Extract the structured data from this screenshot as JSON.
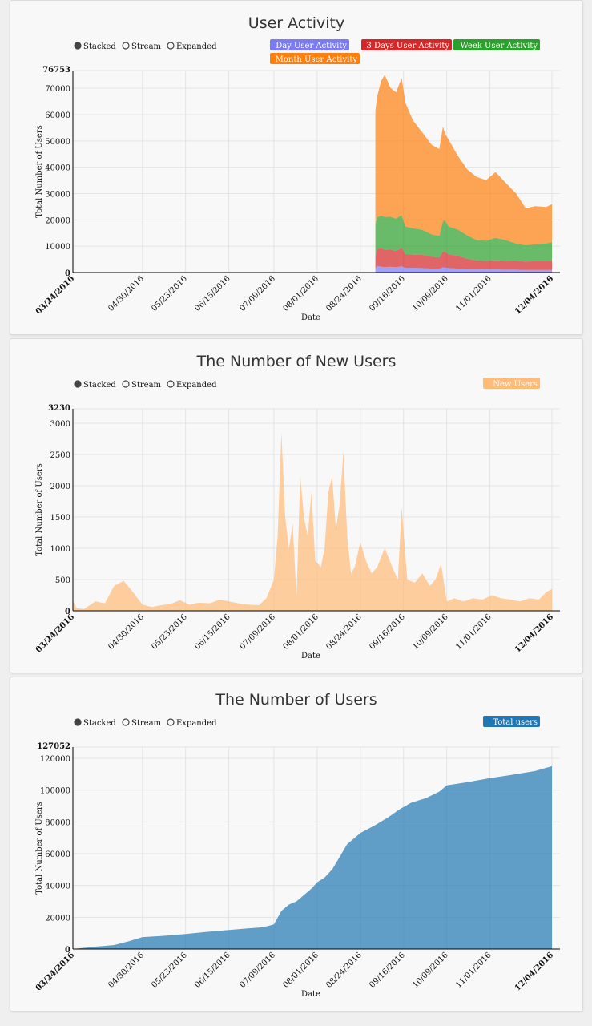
{
  "modes": [
    "Stacked",
    "Stream",
    "Expanded"
  ],
  "selected_mode": "Stacked",
  "x_ticks": [
    "03/24/2016",
    "04/30/2016",
    "05/23/2016",
    "06/15/2016",
    "07/09/2016",
    "08/01/2016",
    "08/24/2016",
    "09/16/2016",
    "10/09/2016",
    "11/01/2016",
    "12/04/2016"
  ],
  "chart_data": [
    {
      "type": "area",
      "title": "User Activity",
      "xlabel": "Date",
      "ylabel": "Total Number of Users",
      "ylim": [
        0,
        76753
      ],
      "y_max_label": "76753",
      "y_ticks": [
        "0",
        "10000",
        "20000",
        "30000",
        "40000",
        "50000",
        "60000",
        "70000"
      ],
      "y_tick_values": [
        0,
        10000,
        20000,
        30000,
        40000,
        50000,
        60000,
        70000
      ],
      "grid": true,
      "legend": "top-right",
      "stacked": true,
      "x": [
        "09/01/2016",
        "09/02/2016",
        "09/04/2016",
        "09/06/2016",
        "09/09/2016",
        "09/12/2016",
        "09/15/2016",
        "09/17/2016",
        "09/21/2016",
        "09/26/2016",
        "10/01/2016",
        "10/05/2016",
        "10/07/2016",
        "10/08/2016",
        "10/10/2016",
        "10/15/2016",
        "10/20/2016",
        "10/25/2016",
        "10/30/2016",
        "11/04/2016",
        "11/09/2016",
        "11/15/2016",
        "11/20/2016",
        "11/25/2016",
        "12/01/2016",
        "12/04/2016"
      ],
      "series": [
        {
          "name": "Day User Activity",
          "color": "#7b7bf5",
          "values": [
            1500,
            2500,
            2200,
            2100,
            2200,
            2000,
            2400,
            1800,
            1800,
            1700,
            1500,
            1400,
            2000,
            1900,
            1700,
            1500,
            1200,
            1200,
            1200,
            1200,
            1100,
            1100,
            1000,
            1000,
            1000,
            1000
          ]
        },
        {
          "name": "3 Days User Activity",
          "color": "#d62728",
          "values": [
            4500,
            6500,
            7000,
            6500,
            6500,
            6200,
            7000,
            5200,
            5000,
            5000,
            4500,
            4300,
            6000,
            6000,
            5200,
            4800,
            4000,
            3400,
            3300,
            3500,
            3400,
            3300,
            3200,
            3300,
            3400,
            3500
          ]
        },
        {
          "name": "Week User Activity",
          "color": "#2ca02c",
          "values": [
            12500,
            12000,
            12500,
            12500,
            12500,
            12300,
            12500,
            10500,
            10000,
            9500,
            8500,
            8200,
            11500,
            12000,
            10600,
            10000,
            8900,
            7700,
            7600,
            8500,
            7900,
            6600,
            6200,
            6400,
            6700,
            7000
          ]
        },
        {
          "name": "Month User Activity",
          "color": "#ff7f0e",
          "values": [
            43000,
            46000,
            51000,
            54000,
            49000,
            48000,
            52000,
            47000,
            41000,
            37000,
            34000,
            33000,
            36000,
            33000,
            33000,
            28000,
            25000,
            24000,
            23000,
            25000,
            22000,
            19000,
            14000,
            14500,
            13800,
            14500
          ]
        }
      ]
    },
    {
      "type": "area",
      "title": "The Number of New Users",
      "xlabel": "Date",
      "ylabel": "Total Number of Users",
      "ylim": [
        0,
        3230
      ],
      "y_max_label": "3230",
      "y_ticks": [
        "0",
        "500",
        "1000",
        "1500",
        "2000",
        "2500",
        "3000"
      ],
      "y_tick_values": [
        0,
        500,
        1000,
        1500,
        2000,
        2500,
        3000
      ],
      "grid": true,
      "legend": "top-right",
      "x": [
        "03/24/2016",
        "03/26/2016",
        "03/30/2016",
        "04/05/2016",
        "04/10/2016",
        "04/15/2016",
        "04/20/2016",
        "04/25/2016",
        "04/30/2016",
        "05/05/2016",
        "05/10/2016",
        "05/15/2016",
        "05/20/2016",
        "05/25/2016",
        "05/30/2016",
        "06/05/2016",
        "06/10/2016",
        "06/15/2016",
        "06/20/2016",
        "06/25/2016",
        "07/01/2016",
        "07/05/2016",
        "07/09/2016",
        "07/11/2016",
        "07/13/2016",
        "07/15/2016",
        "07/17/2016",
        "07/19/2016",
        "07/21/2016",
        "07/23/2016",
        "07/25/2016",
        "07/27/2016",
        "07/29/2016",
        "07/31/2016",
        "08/03/2016",
        "08/05/2016",
        "08/07/2016",
        "08/09/2016",
        "08/11/2016",
        "08/13/2016",
        "08/15/2016",
        "08/17/2016",
        "08/19/2016",
        "08/21/2016",
        "08/24/2016",
        "08/27/2016",
        "08/30/2016",
        "09/02/2016",
        "09/06/2016",
        "09/10/2016",
        "09/13/2016",
        "09/15/2016",
        "09/18/2016",
        "09/22/2016",
        "09/26/2016",
        "09/30/2016",
        "10/03/2016",
        "10/06/2016",
        "10/09/2016",
        "10/13/2016",
        "10/18/2016",
        "10/23/2016",
        "10/28/2016",
        "11/02/2016",
        "11/07/2016",
        "11/12/2016",
        "11/17/2016",
        "11/22/2016",
        "11/27/2016",
        "12/01/2016",
        "12/04/2016"
      ],
      "series": [
        {
          "name": "New Users",
          "color": "#ffbb78",
          "values": [
            160,
            40,
            30,
            150,
            120,
            400,
            480,
            300,
            100,
            60,
            90,
            110,
            170,
            100,
            130,
            120,
            180,
            150,
            120,
            100,
            90,
            200,
            500,
            1200,
            2850,
            1500,
            1000,
            1400,
            200,
            2150,
            1500,
            1200,
            1900,
            800,
            700,
            1000,
            1900,
            2150,
            1300,
            1700,
            2550,
            1200,
            600,
            700,
            1100,
            800,
            600,
            700,
            1000,
            700,
            500,
            1650,
            500,
            450,
            600,
            400,
            500,
            750,
            150,
            200,
            150,
            200,
            180,
            250,
            200,
            180,
            150,
            200,
            180,
            300,
            350
          ]
        }
      ]
    },
    {
      "type": "area",
      "title": "The Number of Users",
      "xlabel": "Date",
      "ylabel": "Total Number of Users",
      "ylim": [
        0,
        127052
      ],
      "y_max_label": "127052",
      "y_ticks": [
        "0",
        "20000",
        "40000",
        "60000",
        "80000",
        "100000",
        "120000"
      ],
      "y_tick_values": [
        0,
        20000,
        40000,
        60000,
        80000,
        100000,
        120000
      ],
      "grid": true,
      "legend": "top-right",
      "x": [
        "03/24/2016",
        "04/05/2016",
        "04/15/2016",
        "04/23/2016",
        "04/30/2016",
        "05/10/2016",
        "05/23/2016",
        "06/05/2016",
        "06/15/2016",
        "06/25/2016",
        "07/01/2016",
        "07/05/2016",
        "07/09/2016",
        "07/13/2016",
        "07/17/2016",
        "07/21/2016",
        "07/25/2016",
        "07/29/2016",
        "08/01/2016",
        "08/05/2016",
        "08/09/2016",
        "08/13/2016",
        "08/17/2016",
        "08/21/2016",
        "08/24/2016",
        "09/01/2016",
        "09/08/2016",
        "09/14/2016",
        "09/20/2016",
        "09/28/2016",
        "10/05/2016",
        "10/09/2016",
        "10/20/2016",
        "11/01/2016",
        "11/15/2016",
        "11/25/2016",
        "12/04/2016"
      ],
      "series": [
        {
          "name": "Total users",
          "color": "#1f77b4",
          "values": [
            0,
            1500,
            2500,
            5000,
            7500,
            8200,
            9500,
            11000,
            12000,
            13000,
            13500,
            14200,
            15500,
            24000,
            28000,
            30000,
            34000,
            38000,
            42000,
            45000,
            50000,
            58000,
            66000,
            70000,
            73000,
            78000,
            83000,
            88000,
            92000,
            95000,
            99000,
            103000,
            105000,
            107500,
            110000,
            112000,
            115000
          ]
        }
      ]
    }
  ]
}
